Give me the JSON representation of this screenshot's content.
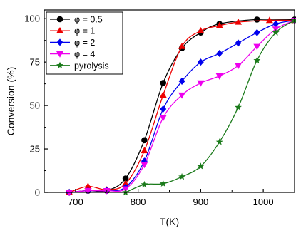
{
  "chart_data": {
    "type": "line",
    "xlabel": "T(K)",
    "ylabel": "Conversion (%)",
    "xlim": [
      650,
      1050
    ],
    "ylim": [
      0,
      105
    ],
    "xticks": [
      700,
      800,
      900,
      1000
    ],
    "yticks": [
      0,
      25,
      50,
      75,
      100
    ],
    "legend_position": "top-left",
    "series": [
      {
        "name": "φ = 0.5",
        "color": "#000000",
        "marker": "circle",
        "x": [
          690,
          720,
          750,
          780,
          810,
          840,
          870,
          900,
          930,
          990,
          1050
        ],
        "y": [
          0,
          1,
          1,
          8,
          30,
          63,
          83,
          92,
          97,
          99.5,
          99.5
        ]
      },
      {
        "name": "φ = 1",
        "color": "#ee0000",
        "marker": "triangle-up",
        "x": [
          690,
          720,
          750,
          780,
          810,
          840,
          870,
          900,
          930,
          960,
          1010,
          1050
        ],
        "y": [
          0,
          3.5,
          1.5,
          5,
          24,
          56,
          84,
          93,
          96,
          98,
          99,
          99
        ]
      },
      {
        "name": "φ = 2",
        "color": "#0000ee",
        "marker": "diamond",
        "x": [
          690,
          720,
          750,
          780,
          810,
          840,
          870,
          900,
          930,
          960,
          990,
          1020,
          1050
        ],
        "y": [
          0,
          1,
          1,
          3,
          18,
          48,
          64,
          75,
          80,
          86,
          92,
          97,
          99
        ]
      },
      {
        "name": "φ = 4",
        "color": "#ee00ee",
        "marker": "triangle-down",
        "x": [
          690,
          720,
          750,
          780,
          810,
          840,
          870,
          900,
          930,
          960,
          990,
          1020,
          1050
        ],
        "y": [
          0,
          1,
          1,
          2,
          16,
          43,
          56,
          63,
          67,
          73,
          84,
          94,
          99
        ]
      },
      {
        "name": "pyrolysis",
        "color": "#1a7a1a",
        "marker": "star",
        "x": [
          780,
          810,
          840,
          870,
          900,
          930,
          960,
          990,
          1020,
          1050
        ],
        "y": [
          0,
          4.5,
          5,
          9,
          15,
          29,
          49,
          76,
          92,
          99
        ]
      }
    ]
  }
}
